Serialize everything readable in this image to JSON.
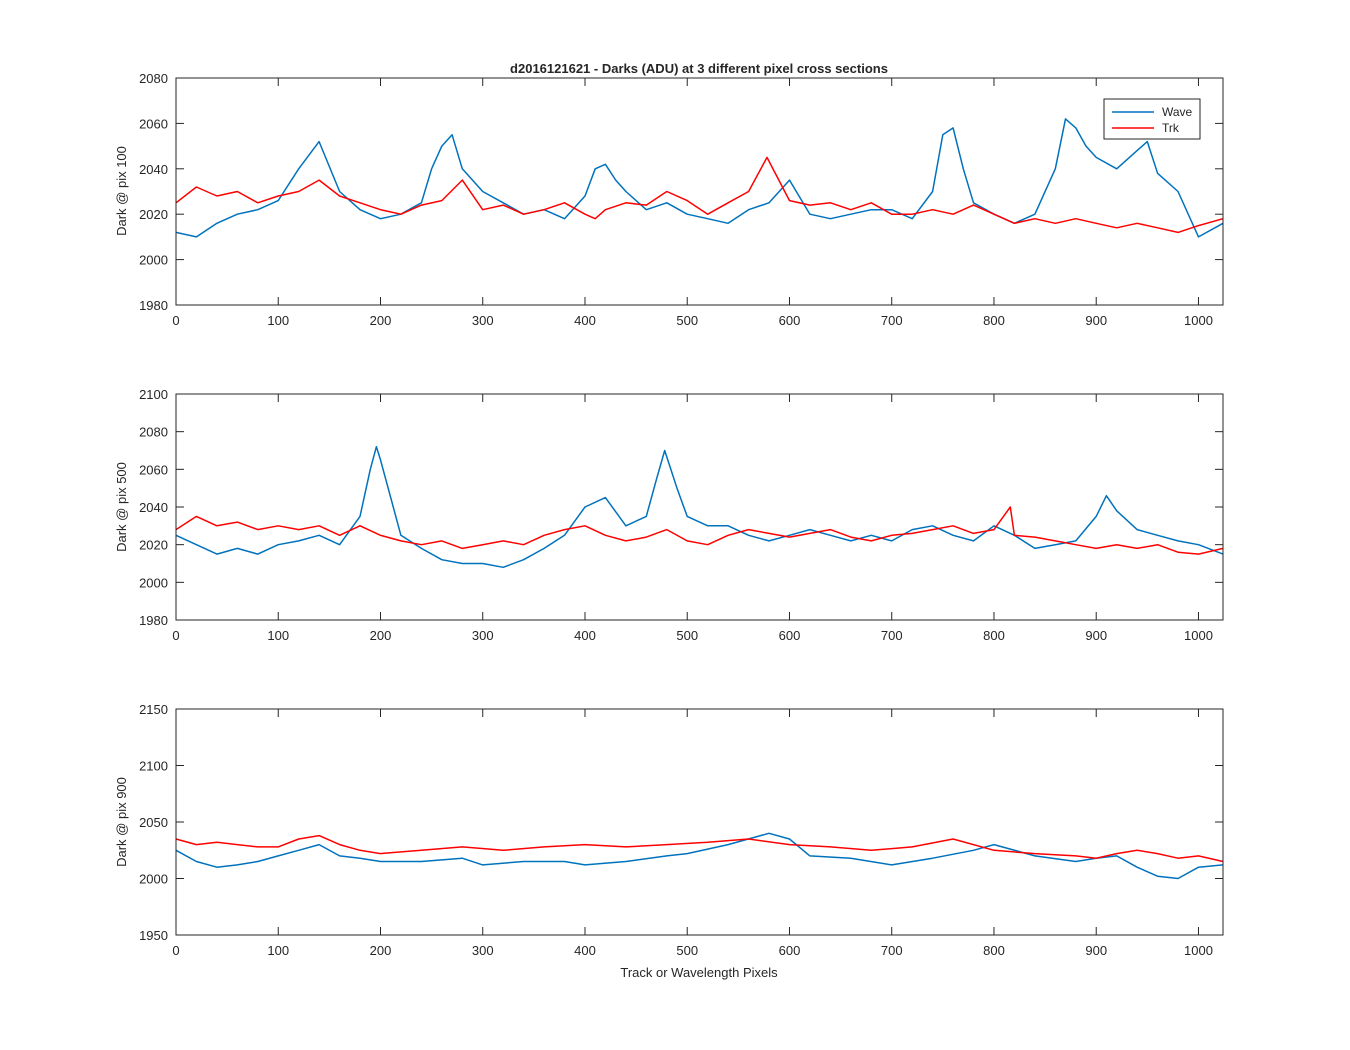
{
  "figure": {
    "title": "d2016121621 - Darks (ADU) at 3 different pixel cross sections",
    "xlabel": "Track or Wavelength Pixels",
    "legend": {
      "placement": "top-right inside first subplot",
      "entries": [
        "Wave",
        "Trk"
      ]
    },
    "colors": {
      "Wave": "#0072BD",
      "Trk": "#FF0000",
      "axes": "#262626",
      "background": "#ffffff"
    }
  },
  "chart_data": [
    {
      "type": "line",
      "ylabel": "Dark @ pix 100",
      "xlim": [
        0,
        1024
      ],
      "ylim": [
        1980,
        2080
      ],
      "xticks": [
        0,
        100,
        200,
        300,
        400,
        500,
        600,
        700,
        800,
        900,
        1000
      ],
      "yticks": [
        1980,
        2000,
        2020,
        2040,
        2060,
        2080
      ],
      "grid": false,
      "legend": "top-right",
      "series": [
        {
          "name": "Wave",
          "color": "#0072BD",
          "x": [
            0,
            20,
            40,
            60,
            80,
            100,
            120,
            140,
            160,
            180,
            200,
            220,
            240,
            250,
            260,
            270,
            280,
            290,
            300,
            320,
            340,
            360,
            380,
            400,
            410,
            420,
            430,
            440,
            460,
            480,
            500,
            520,
            540,
            560,
            580,
            600,
            620,
            640,
            660,
            680,
            700,
            720,
            740,
            750,
            760,
            770,
            780,
            800,
            820,
            840,
            860,
            870,
            880,
            890,
            900,
            920,
            940,
            950,
            960,
            980,
            1000,
            1024
          ],
          "y": [
            2012,
            2010,
            2016,
            2020,
            2022,
            2026,
            2040,
            2052,
            2030,
            2022,
            2018,
            2020,
            2025,
            2040,
            2050,
            2055,
            2040,
            2035,
            2030,
            2025,
            2020,
            2022,
            2018,
            2028,
            2040,
            2042,
            2035,
            2030,
            2022,
            2025,
            2020,
            2018,
            2016,
            2022,
            2025,
            2035,
            2020,
            2018,
            2020,
            2022,
            2022,
            2018,
            2030,
            2055,
            2058,
            2040,
            2025,
            2020,
            2016,
            2020,
            2040,
            2062,
            2058,
            2050,
            2045,
            2040,
            2048,
            2052,
            2038,
            2030,
            2010,
            2016
          ]
        },
        {
          "name": "Trk",
          "color": "#FF0000",
          "x": [
            0,
            20,
            40,
            60,
            80,
            100,
            120,
            140,
            160,
            180,
            200,
            220,
            240,
            260,
            280,
            300,
            320,
            340,
            360,
            380,
            400,
            410,
            420,
            440,
            460,
            480,
            500,
            520,
            540,
            560,
            578,
            600,
            620,
            640,
            660,
            680,
            700,
            720,
            740,
            760,
            780,
            800,
            820,
            840,
            860,
            880,
            900,
            920,
            940,
            960,
            980,
            1000,
            1024
          ],
          "y": [
            2025,
            2032,
            2028,
            2030,
            2025,
            2028,
            2030,
            2035,
            2028,
            2025,
            2022,
            2020,
            2024,
            2026,
            2035,
            2022,
            2024,
            2020,
            2022,
            2025,
            2020,
            2018,
            2022,
            2025,
            2024,
            2030,
            2026,
            2020,
            2025,
            2030,
            2045,
            2026,
            2024,
            2025,
            2022,
            2025,
            2020,
            2020,
            2022,
            2020,
            2024,
            2020,
            2016,
            2018,
            2016,
            2018,
            2016,
            2014,
            2016,
            2014,
            2012,
            2015,
            2018
          ]
        }
      ]
    },
    {
      "type": "line",
      "ylabel": "Dark @ pix 500",
      "xlim": [
        0,
        1024
      ],
      "ylim": [
        1980,
        2100
      ],
      "xticks": [
        0,
        100,
        200,
        300,
        400,
        500,
        600,
        700,
        800,
        900,
        1000
      ],
      "yticks": [
        1980,
        2000,
        2020,
        2040,
        2060,
        2080,
        2100
      ],
      "grid": false,
      "series": [
        {
          "name": "Wave",
          "color": "#0072BD",
          "x": [
            0,
            20,
            40,
            60,
            80,
            100,
            120,
            140,
            160,
            180,
            190,
            196,
            200,
            210,
            220,
            240,
            260,
            280,
            300,
            320,
            340,
            360,
            380,
            400,
            420,
            440,
            460,
            470,
            478,
            490,
            500,
            520,
            540,
            560,
            580,
            600,
            620,
            640,
            660,
            680,
            700,
            720,
            740,
            760,
            780,
            800,
            820,
            840,
            860,
            880,
            900,
            910,
            920,
            940,
            960,
            980,
            1000,
            1024
          ],
          "y": [
            2025,
            2020,
            2015,
            2018,
            2015,
            2020,
            2022,
            2025,
            2020,
            2035,
            2060,
            2072,
            2065,
            2045,
            2025,
            2018,
            2012,
            2010,
            2010,
            2008,
            2012,
            2018,
            2025,
            2040,
            2045,
            2030,
            2035,
            2055,
            2070,
            2050,
            2035,
            2030,
            2030,
            2025,
            2022,
            2025,
            2028,
            2025,
            2022,
            2025,
            2022,
            2028,
            2030,
            2025,
            2022,
            2030,
            2025,
            2018,
            2020,
            2022,
            2035,
            2046,
            2038,
            2028,
            2025,
            2022,
            2020,
            2015
          ]
        },
        {
          "name": "Trk",
          "color": "#FF0000",
          "x": [
            0,
            20,
            40,
            60,
            80,
            100,
            120,
            140,
            160,
            180,
            200,
            220,
            240,
            260,
            280,
            300,
            320,
            340,
            360,
            380,
            400,
            420,
            440,
            460,
            480,
            500,
            520,
            540,
            560,
            580,
            600,
            620,
            640,
            660,
            680,
            700,
            720,
            740,
            760,
            780,
            800,
            816,
            820,
            840,
            860,
            880,
            900,
            920,
            940,
            960,
            980,
            1000,
            1024
          ],
          "y": [
            2028,
            2035,
            2030,
            2032,
            2028,
            2030,
            2028,
            2030,
            2025,
            2030,
            2025,
            2022,
            2020,
            2022,
            2018,
            2020,
            2022,
            2020,
            2025,
            2028,
            2030,
            2025,
            2022,
            2024,
            2028,
            2022,
            2020,
            2025,
            2028,
            2026,
            2024,
            2026,
            2028,
            2024,
            2022,
            2025,
            2026,
            2028,
            2030,
            2026,
            2028,
            2040,
            2025,
            2024,
            2022,
            2020,
            2018,
            2020,
            2018,
            2020,
            2016,
            2015,
            2018
          ]
        }
      ]
    },
    {
      "type": "line",
      "ylabel": "Dark @ pix 900",
      "xlim": [
        0,
        1024
      ],
      "ylim": [
        1950,
        2150
      ],
      "xticks": [
        0,
        100,
        200,
        300,
        400,
        500,
        600,
        700,
        800,
        900,
        1000
      ],
      "yticks": [
        1950,
        2000,
        2050,
        2100,
        2150
      ],
      "grid": false,
      "series": [
        {
          "name": "Wave",
          "color": "#0072BD",
          "x": [
            0,
            20,
            40,
            60,
            80,
            100,
            120,
            140,
            160,
            180,
            200,
            240,
            280,
            300,
            340,
            380,
            400,
            440,
            480,
            500,
            540,
            580,
            600,
            620,
            660,
            700,
            740,
            780,
            800,
            840,
            880,
            900,
            920,
            940,
            960,
            980,
            1000,
            1024
          ],
          "y": [
            2025,
            2015,
            2010,
            2012,
            2015,
            2020,
            2025,
            2030,
            2020,
            2018,
            2015,
            2015,
            2018,
            2012,
            2015,
            2015,
            2012,
            2015,
            2020,
            2022,
            2030,
            2040,
            2035,
            2020,
            2018,
            2012,
            2018,
            2025,
            2030,
            2020,
            2015,
            2018,
            2020,
            2010,
            2002,
            2000,
            2010,
            2012
          ]
        },
        {
          "name": "Trk",
          "color": "#FF0000",
          "x": [
            0,
            20,
            40,
            60,
            80,
            100,
            120,
            140,
            160,
            180,
            200,
            240,
            280,
            320,
            360,
            400,
            440,
            480,
            520,
            560,
            600,
            640,
            680,
            720,
            760,
            800,
            840,
            880,
            900,
            920,
            940,
            960,
            980,
            1000,
            1024
          ],
          "y": [
            2035,
            2030,
            2032,
            2030,
            2028,
            2028,
            2035,
            2038,
            2030,
            2025,
            2022,
            2025,
            2028,
            2025,
            2028,
            2030,
            2028,
            2030,
            2032,
            2035,
            2030,
            2028,
            2025,
            2028,
            2035,
            2025,
            2022,
            2020,
            2018,
            2022,
            2025,
            2022,
            2018,
            2020,
            2015
          ]
        }
      ]
    }
  ]
}
